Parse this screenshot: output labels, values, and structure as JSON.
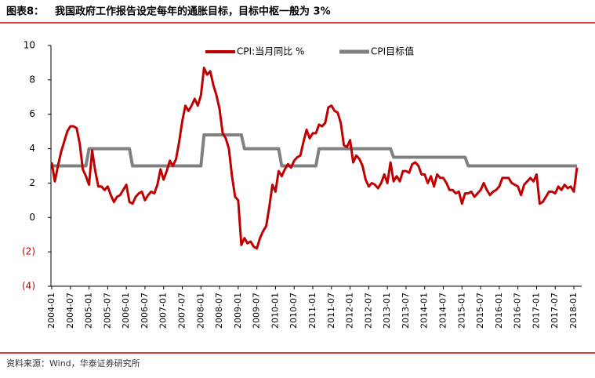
{
  "chart_data": {
    "type": "line",
    "title_label": "图表8：",
    "title": "我国政府工作报告设定每年的通胀目标，目标中枢一般为 3%",
    "source": "资料来源：Wind，华泰证券研究所",
    "categories": [
      "2004-01",
      null,
      null,
      null,
      null,
      null,
      "2004-07",
      null,
      null,
      null,
      null,
      null,
      "2005-01",
      null,
      null,
      null,
      null,
      null,
      "2005-07",
      null,
      null,
      null,
      null,
      null,
      "2006-01",
      null,
      null,
      null,
      null,
      null,
      "2006-07",
      null,
      null,
      null,
      null,
      null,
      "2007-01",
      null,
      null,
      null,
      null,
      null,
      "2007-07",
      null,
      null,
      null,
      null,
      null,
      "2008-01",
      null,
      null,
      null,
      null,
      null,
      "2008-07",
      null,
      null,
      null,
      null,
      null,
      "2009-01",
      null,
      null,
      null,
      null,
      null,
      "2009-07",
      null,
      null,
      null,
      null,
      null,
      "2010-01",
      null,
      null,
      null,
      null,
      null,
      "2010-07",
      null,
      null,
      null,
      null,
      null,
      "2011-01",
      null,
      null,
      null,
      null,
      null,
      "2011-07",
      null,
      null,
      null,
      null,
      null,
      "2012-01",
      null,
      null,
      null,
      null,
      null,
      "2012-07",
      null,
      null,
      null,
      null,
      null,
      "2013-01",
      null,
      null,
      null,
      null,
      null,
      "2013-07",
      null,
      null,
      null,
      null,
      null,
      "2014-01",
      null,
      null,
      null,
      null,
      null,
      "2014-07",
      null,
      null,
      null,
      null,
      null,
      "2015-01",
      null,
      null,
      null,
      null,
      null,
      "2015-07",
      null,
      null,
      null,
      null,
      null,
      "2016-01",
      null,
      null,
      null,
      null,
      null,
      "2016-07",
      null,
      null,
      null,
      null,
      null,
      "2017-01",
      null,
      null,
      null,
      null,
      null,
      "2017-07",
      null,
      null,
      null,
      null,
      null,
      "2018-01",
      null
    ],
    "series": [
      {
        "name": "CPI:当月同比 %",
        "color": "#c00000",
        "width": 3,
        "values": [
          3.2,
          2.1,
          3.0,
          3.8,
          4.4,
          5.0,
          5.3,
          5.3,
          5.2,
          4.3,
          2.8,
          2.4,
          1.9,
          3.9,
          2.7,
          1.8,
          1.8,
          1.6,
          1.8,
          1.3,
          0.9,
          1.2,
          1.3,
          1.6,
          1.9,
          0.9,
          0.8,
          1.2,
          1.4,
          1.5,
          1.0,
          1.3,
          1.5,
          1.4,
          1.9,
          2.8,
          2.2,
          2.7,
          3.3,
          3.0,
          3.4,
          4.4,
          5.6,
          6.5,
          6.2,
          6.5,
          6.9,
          6.5,
          7.1,
          8.7,
          8.3,
          8.5,
          7.7,
          7.1,
          6.3,
          4.9,
          4.6,
          4.0,
          2.4,
          1.2,
          1.0,
          -1.6,
          -1.2,
          -1.5,
          -1.4,
          -1.7,
          -1.8,
          -1.2,
          -0.8,
          -0.5,
          0.6,
          1.9,
          1.5,
          2.7,
          2.4,
          2.8,
          3.1,
          2.9,
          3.3,
          3.5,
          3.6,
          4.4,
          5.1,
          4.6,
          4.9,
          4.9,
          5.4,
          5.3,
          5.5,
          6.4,
          6.5,
          6.2,
          6.1,
          5.5,
          4.2,
          4.1,
          4.5,
          3.2,
          3.6,
          3.4,
          3.0,
          2.2,
          1.8,
          2.0,
          1.9,
          1.7,
          2.0,
          2.5,
          2.0,
          3.2,
          2.1,
          2.4,
          2.1,
          2.7,
          2.7,
          2.6,
          3.1,
          3.2,
          3.0,
          2.5,
          2.5,
          2.0,
          2.4,
          1.8,
          2.5,
          2.3,
          2.3,
          2.0,
          1.6,
          1.6,
          1.4,
          1.5,
          0.8,
          1.4,
          1.4,
          1.5,
          1.2,
          1.4,
          1.6,
          2.0,
          1.6,
          1.3,
          1.5,
          1.6,
          1.8,
          2.3,
          2.3,
          2.3,
          2.0,
          1.9,
          1.8,
          1.3,
          1.9,
          2.1,
          2.3,
          2.1,
          2.5,
          0.8,
          0.9,
          1.2,
          1.5,
          1.5,
          1.4,
          1.8,
          1.6,
          1.9,
          1.7,
          1.8,
          1.5,
          2.9
        ]
      },
      {
        "name": "CPI目标值",
        "color": "#808080",
        "width": 4,
        "values": [
          3,
          3,
          3,
          3,
          3,
          3,
          3,
          3,
          3,
          3,
          3,
          3,
          4,
          4,
          4,
          4,
          4,
          4,
          4,
          4,
          4,
          4,
          4,
          4,
          4,
          4,
          3,
          3,
          3,
          3,
          3,
          3,
          3,
          3,
          3,
          3,
          3,
          3,
          3,
          3,
          3,
          3,
          3,
          3,
          3,
          3,
          3,
          3,
          3,
          4.8,
          4.8,
          4.8,
          4.8,
          4.8,
          4.8,
          4.8,
          4.8,
          4.8,
          4.8,
          4.8,
          4.8,
          4.8,
          4,
          4,
          4,
          4,
          4,
          4,
          4,
          4,
          4,
          4,
          4,
          4,
          3,
          3,
          3,
          3,
          3,
          3,
          3,
          3,
          3,
          3,
          3,
          3,
          4,
          4,
          4,
          4,
          4,
          4,
          4,
          4,
          4,
          4,
          4,
          4,
          4,
          4,
          4,
          4,
          4,
          4,
          4,
          4,
          4,
          4,
          4,
          4,
          3.5,
          3.5,
          3.5,
          3.5,
          3.5,
          3.5,
          3.5,
          3.5,
          3.5,
          3.5,
          3.5,
          3.5,
          3.5,
          3.5,
          3.5,
          3.5,
          3.5,
          3.5,
          3.5,
          3.5,
          3.5,
          3.5,
          3.5,
          3.5,
          3,
          3,
          3,
          3,
          3,
          3,
          3,
          3,
          3,
          3,
          3,
          3,
          3,
          3,
          3,
          3,
          3,
          3,
          3,
          3,
          3,
          3,
          3,
          3,
          3,
          3,
          3,
          3,
          3,
          3,
          3,
          3,
          3,
          3,
          3,
          3
        ]
      }
    ],
    "ylim": [
      -4,
      10
    ],
    "yticks": [
      {
        "value": -4,
        "label": "(4)"
      },
      {
        "value": -2,
        "label": "(2)"
      },
      0,
      2,
      4,
      6,
      8,
      10
    ],
    "negative_tick_color": "#c00000",
    "grid": false
  }
}
